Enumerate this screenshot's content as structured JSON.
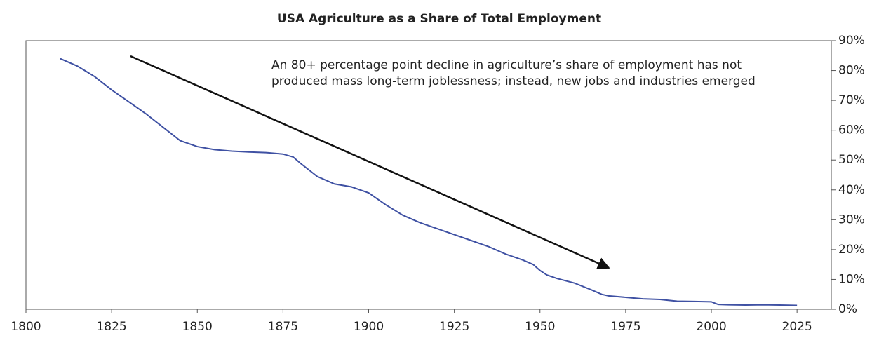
{
  "chart_data": {
    "type": "line",
    "title": "USA Agriculture as a Share of Total Employment",
    "annotation": [
      "An 80+ percentage point decline in agriculture’s share of employment has not",
      "produced mass long-term joblessness; instead, new jobs and industries emerged"
    ],
    "series": [
      {
        "color": "#3f51a3",
        "x": [
          1810,
          1815,
          1820,
          1825,
          1830,
          1835,
          1840,
          1845,
          1850,
          1855,
          1860,
          1865,
          1870,
          1875,
          1878,
          1880,
          1885,
          1890,
          1895,
          1900,
          1905,
          1910,
          1915,
          1920,
          1925,
          1930,
          1935,
          1940,
          1945,
          1948,
          1950,
          1952,
          1955,
          1960,
          1965,
          1968,
          1970,
          1975,
          1980,
          1985,
          1990,
          1995,
          2000,
          2002,
          2005,
          2010,
          2015,
          2020,
          2025
        ],
        "values": [
          84,
          81.5,
          78,
          73.5,
          69.5,
          65.5,
          61,
          56.5,
          54.5,
          53.5,
          53,
          52.7,
          52.5,
          52,
          51,
          49,
          44.5,
          42,
          41,
          39,
          35,
          31.5,
          29,
          27,
          25,
          23,
          21,
          18.5,
          16.5,
          15,
          13,
          11.5,
          10.3,
          8.8,
          6.5,
          5,
          4.5,
          4,
          3.5,
          3.3,
          2.7,
          2.6,
          2.5,
          1.6,
          1.5,
          1.4,
          1.5,
          1.4,
          1.3
        ]
      }
    ],
    "xlim": [
      1800,
      2035
    ],
    "xticks": [
      1800,
      1825,
      1850,
      1875,
      1900,
      1925,
      1950,
      1975,
      2000,
      2025
    ],
    "ylim": [
      0,
      90
    ],
    "yticks": [
      {
        "value": 0,
        "label": "0%"
      },
      {
        "value": 10,
        "label": "10%"
      },
      {
        "value": 20,
        "label": "20%"
      },
      {
        "value": 30,
        "label": "30%"
      },
      {
        "value": 40,
        "label": "40%"
      },
      {
        "value": 50,
        "label": "50%"
      },
      {
        "value": 60,
        "label": "60%"
      },
      {
        "value": 70,
        "label": "70%"
      },
      {
        "value": 80,
        "label": "80%"
      },
      {
        "value": 90,
        "label": "90%"
      }
    ]
  }
}
